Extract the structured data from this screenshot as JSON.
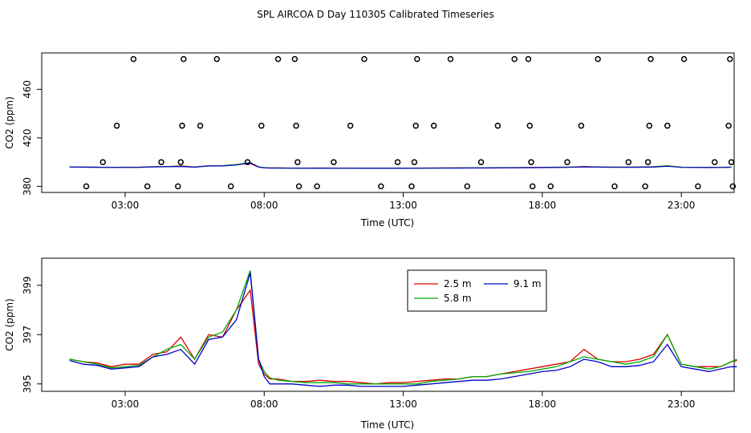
{
  "page_title": "SPL AIRCOA D  Day 110305  Calibrated Timeseries",
  "chart_data": [
    {
      "type": "scatter",
      "title": "SPL AIRCOA D  Day 110305  Calibrated Timeseries",
      "xlabel": "Time (UTC)",
      "ylabel": "CO2 (ppm)",
      "xlim": [
        0,
        24.9
      ],
      "ylim": [
        375,
        490
      ],
      "x_ticks": [
        3,
        8,
        13,
        18,
        23
      ],
      "x_tick_labels": [
        "03:00",
        "08:00",
        "13:00",
        "18:00",
        "23:00"
      ],
      "y_ticks": [
        380,
        420,
        460
      ],
      "y_tick_labels": [
        "380",
        "420",
        "460"
      ],
      "grid": false,
      "calibration_points": [
        {
          "x": 1.6,
          "y": 380
        },
        {
          "x": 2.2,
          "y": 400
        },
        {
          "x": 2.7,
          "y": 430
        },
        {
          "x": 3.3,
          "y": 485
        },
        {
          "x": 3.8,
          "y": 380
        },
        {
          "x": 4.3,
          "y": 400
        },
        {
          "x": 4.9,
          "y": 380
        },
        {
          "x": 5.0,
          "y": 400
        },
        {
          "x": 5.05,
          "y": 430
        },
        {
          "x": 5.1,
          "y": 485
        },
        {
          "x": 5.7,
          "y": 430
        },
        {
          "x": 6.3,
          "y": 485
        },
        {
          "x": 6.8,
          "y": 380
        },
        {
          "x": 7.4,
          "y": 400
        },
        {
          "x": 7.9,
          "y": 430
        },
        {
          "x": 8.5,
          "y": 485
        },
        {
          "x": 9.1,
          "y": 485
        },
        {
          "x": 9.15,
          "y": 430
        },
        {
          "x": 9.2,
          "y": 400
        },
        {
          "x": 9.25,
          "y": 380
        },
        {
          "x": 9.9,
          "y": 380
        },
        {
          "x": 10.5,
          "y": 400
        },
        {
          "x": 11.1,
          "y": 430
        },
        {
          "x": 11.6,
          "y": 485
        },
        {
          "x": 12.2,
          "y": 380
        },
        {
          "x": 12.8,
          "y": 400
        },
        {
          "x": 13.3,
          "y": 380
        },
        {
          "x": 13.4,
          "y": 400
        },
        {
          "x": 13.45,
          "y": 430
        },
        {
          "x": 13.5,
          "y": 485
        },
        {
          "x": 14.1,
          "y": 430
        },
        {
          "x": 14.7,
          "y": 485
        },
        {
          "x": 15.3,
          "y": 380
        },
        {
          "x": 15.8,
          "y": 400
        },
        {
          "x": 16.4,
          "y": 430
        },
        {
          "x": 17.0,
          "y": 485
        },
        {
          "x": 17.5,
          "y": 485
        },
        {
          "x": 17.55,
          "y": 430
        },
        {
          "x": 17.6,
          "y": 400
        },
        {
          "x": 17.65,
          "y": 380
        },
        {
          "x": 18.3,
          "y": 380
        },
        {
          "x": 18.9,
          "y": 400
        },
        {
          "x": 19.4,
          "y": 430
        },
        {
          "x": 20.0,
          "y": 485
        },
        {
          "x": 20.6,
          "y": 380
        },
        {
          "x": 21.1,
          "y": 400
        },
        {
          "x": 21.7,
          "y": 380
        },
        {
          "x": 21.8,
          "y": 400
        },
        {
          "x": 21.85,
          "y": 430
        },
        {
          "x": 21.9,
          "y": 485
        },
        {
          "x": 22.5,
          "y": 430
        },
        {
          "x": 23.1,
          "y": 485
        },
        {
          "x": 23.6,
          "y": 380
        },
        {
          "x": 24.2,
          "y": 400
        },
        {
          "x": 24.7,
          "y": 430
        },
        {
          "x": 24.75,
          "y": 485
        },
        {
          "x": 24.8,
          "y": 400
        },
        {
          "x": 24.85,
          "y": 380
        }
      ],
      "series_lines": [
        {
          "color": "#dd0000"
        },
        {
          "color": "#00aa00"
        },
        {
          "color": "#0000cc"
        }
      ]
    },
    {
      "type": "line",
      "xlabel": "Time (UTC)",
      "ylabel": "CO2 (ppm)",
      "xlim": [
        0,
        24.9
      ],
      "ylim": [
        394.7,
        400.1
      ],
      "x_ticks": [
        3,
        8,
        13,
        18,
        23
      ],
      "x_tick_labels": [
        "03:00",
        "08:00",
        "13:00",
        "18:00",
        "23:00"
      ],
      "y_ticks": [
        395,
        397,
        399
      ],
      "y_tick_labels": [
        "395",
        "397",
        "399"
      ],
      "grid": false,
      "legend": {
        "placement": "top-center"
      },
      "x": [
        1.0,
        1.5,
        2.0,
        2.5,
        3.0,
        3.5,
        4.0,
        4.5,
        5.0,
        5.5,
        6.0,
        6.5,
        7.0,
        7.5,
        7.8,
        8.0,
        8.2,
        8.5,
        9.0,
        9.5,
        10.0,
        10.5,
        11.0,
        11.5,
        12.0,
        12.5,
        13.0,
        13.5,
        14.0,
        14.5,
        15.0,
        15.5,
        16.0,
        16.5,
        17.0,
        17.5,
        18.0,
        18.5,
        19.0,
        19.5,
        20.0,
        20.5,
        21.0,
        21.5,
        22.0,
        22.5,
        23.0,
        23.5,
        24.0,
        24.4,
        24.8,
        25.0
      ],
      "series": [
        {
          "name": "2.5 m",
          "color": "#dd0000",
          "values": [
            396.0,
            395.9,
            395.85,
            395.7,
            395.8,
            395.8,
            396.2,
            396.3,
            396.9,
            396.0,
            397.0,
            396.9,
            398.0,
            398.8,
            395.8,
            395.4,
            395.2,
            395.2,
            395.1,
            395.1,
            395.15,
            395.1,
            395.1,
            395.05,
            395.0,
            395.05,
            395.05,
            395.1,
            395.15,
            395.2,
            395.2,
            395.3,
            395.3,
            395.4,
            395.5,
            395.6,
            395.7,
            395.8,
            395.9,
            396.4,
            396.0,
            395.9,
            395.9,
            396.0,
            396.2,
            397.0,
            395.8,
            395.7,
            395.7,
            395.7,
            395.9,
            395.95
          ]
        },
        {
          "name": "5.8 m",
          "color": "#00aa00",
          "values": [
            396.0,
            395.9,
            395.8,
            395.65,
            395.7,
            395.75,
            396.1,
            396.4,
            396.6,
            396.0,
            396.9,
            397.1,
            398.0,
            399.6,
            396.0,
            395.5,
            395.25,
            395.15,
            395.1,
            395.05,
            395.05,
            395.05,
            395.0,
            395.0,
            395.0,
            395.0,
            395.0,
            395.0,
            395.1,
            395.15,
            395.2,
            395.3,
            395.3,
            395.4,
            395.45,
            395.5,
            395.6,
            395.7,
            395.9,
            396.1,
            396.0,
            395.9,
            395.8,
            395.9,
            396.1,
            397.0,
            395.8,
            395.7,
            395.6,
            395.7,
            395.9,
            396.0
          ]
        },
        {
          "name": "9.1 m",
          "color": "#0000cc",
          "values": [
            395.95,
            395.8,
            395.75,
            395.6,
            395.65,
            395.7,
            396.1,
            396.2,
            396.4,
            395.8,
            396.8,
            396.9,
            397.6,
            399.5,
            396.0,
            395.3,
            395.0,
            395.0,
            395.0,
            394.95,
            394.9,
            394.95,
            394.95,
            394.9,
            394.9,
            394.9,
            394.9,
            394.95,
            395.0,
            395.05,
            395.1,
            395.15,
            395.15,
            395.2,
            395.3,
            395.4,
            395.5,
            395.55,
            395.7,
            396.0,
            395.9,
            395.7,
            395.7,
            395.75,
            395.9,
            396.6,
            395.7,
            395.6,
            395.5,
            395.6,
            395.7,
            395.7
          ]
        }
      ]
    }
  ]
}
